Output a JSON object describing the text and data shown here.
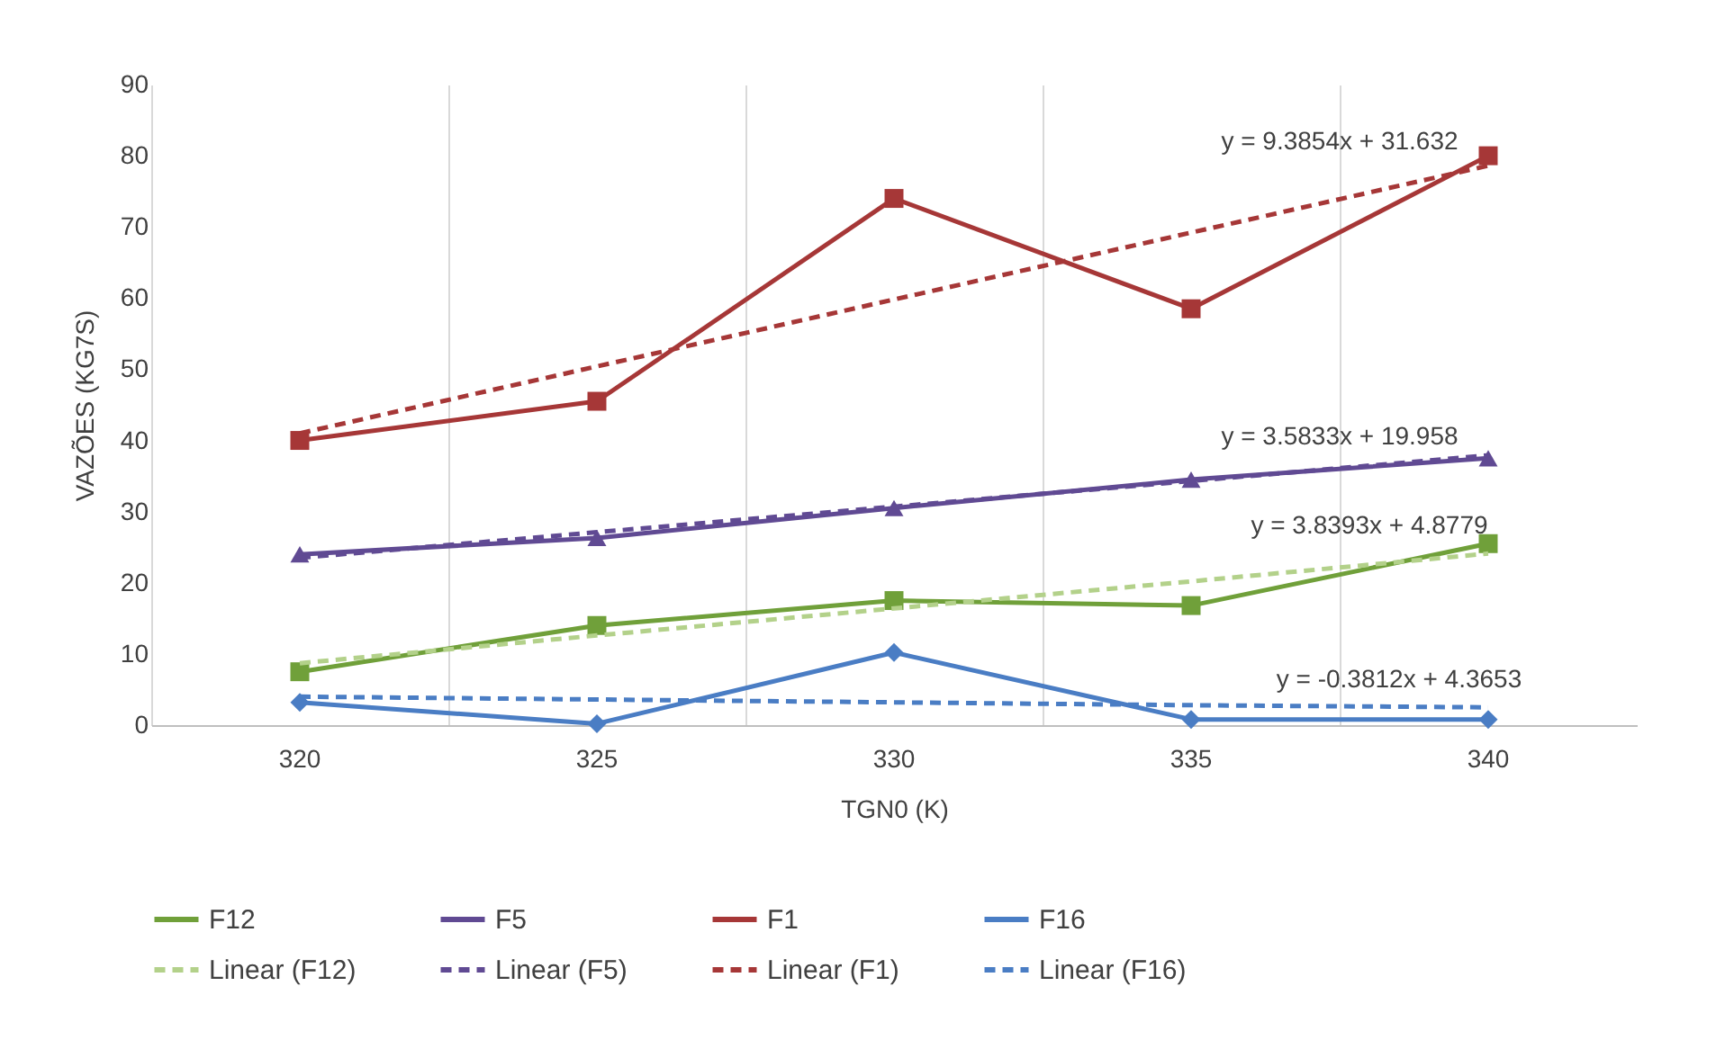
{
  "chart_data": {
    "type": "line",
    "xlabel": "TGN0 (K)",
    "ylabel": "VAZÕES (KG7S)",
    "categories": [
      "320",
      "325",
      "330",
      "335",
      "340"
    ],
    "ylim": [
      0,
      90
    ],
    "yticks": [
      0,
      10,
      20,
      30,
      40,
      50,
      60,
      70,
      80,
      90
    ],
    "grid": "x",
    "legend": "bottom",
    "series": [
      {
        "name": "F12",
        "color": "#70a03a",
        "marker": "square",
        "line_style": "solid",
        "values": [
          7.5,
          14,
          17.5,
          16.8,
          25.5
        ]
      },
      {
        "name": "F5",
        "color": "#604a93",
        "marker": "triangle",
        "line_style": "solid",
        "values": [
          24,
          26.3,
          30.5,
          34.5,
          37.5
        ]
      },
      {
        "name": "F1",
        "color": "#a63737",
        "marker": "square",
        "line_style": "solid",
        "values": [
          40,
          45.5,
          74,
          58.5,
          80
        ]
      },
      {
        "name": "F16",
        "color": "#4a7dc4",
        "marker": "diamond",
        "line_style": "solid",
        "values": [
          3.2,
          0.2,
          10.2,
          0.8,
          0.8
        ]
      },
      {
        "name": "Linear (F12)",
        "color": "#b3d18a",
        "marker": "none",
        "line_style": "dashed",
        "values": [
          8.7,
          12.6,
          16.4,
          20.2,
          24.1
        ]
      },
      {
        "name": "Linear (F5)",
        "color": "#604a93",
        "marker": "none",
        "line_style": "dashed",
        "values": [
          23.5,
          27.1,
          30.7,
          34.3,
          37.9
        ]
      },
      {
        "name": "Linear (F1)",
        "color": "#a63737",
        "marker": "none",
        "line_style": "dashed",
        "values": [
          41.0,
          50.4,
          59.8,
          69.2,
          78.6
        ]
      },
      {
        "name": "Linear (F16)",
        "color": "#4a7dc4",
        "marker": "none",
        "line_style": "dashed",
        "values": [
          4.0,
          3.6,
          3.2,
          2.8,
          2.5
        ]
      }
    ],
    "annotations": [
      "y = 9.3854x + 31.632",
      "y = 3.5833x + 19.958",
      "y = 3.8393x + 4.8779",
      "y = -0.3812x + 4.3653"
    ]
  }
}
